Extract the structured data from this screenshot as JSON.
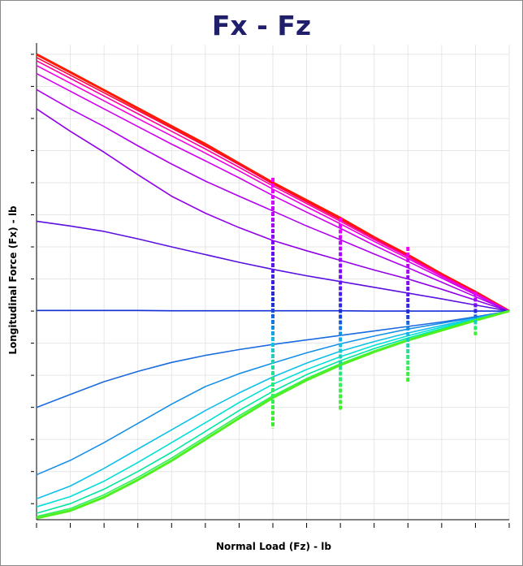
{
  "chart_data": {
    "type": "line",
    "title": "Fx - Fz",
    "xlabel": "Normal Load (Fz) - lb",
    "ylabel": "Longitudinal Force (Fx) - lb",
    "xlim": [
      0,
      14
    ],
    "ylim": [
      -6.5,
      8.3
    ],
    "grid": true,
    "legend": "none",
    "x": [
      0,
      1,
      2,
      3,
      4,
      5,
      6,
      7,
      8,
      9,
      10,
      11,
      12,
      13,
      14
    ],
    "series": [
      {
        "color": "#ff1a00",
        "values": [
          8.0,
          7.44,
          6.88,
          6.32,
          5.76,
          5.2,
          4.6,
          4.0,
          3.45,
          2.9,
          2.3,
          1.75,
          1.15,
          0.6,
          0.0
        ]
      },
      {
        "color": "#ff0040",
        "values": [
          7.9,
          7.35,
          6.8,
          6.25,
          5.7,
          5.14,
          4.56,
          3.96,
          3.4,
          2.85,
          2.27,
          1.72,
          1.13,
          0.58,
          0.0
        ]
      },
      {
        "color": "#ff00a0",
        "values": [
          7.8,
          7.25,
          6.7,
          6.15,
          5.6,
          5.05,
          4.48,
          3.9,
          3.35,
          2.8,
          2.23,
          1.69,
          1.11,
          0.56,
          0.0
        ]
      },
      {
        "color": "#f000e0",
        "values": [
          7.65,
          7.1,
          6.55,
          6.0,
          5.46,
          4.92,
          4.37,
          3.8,
          3.25,
          2.72,
          2.17,
          1.64,
          1.08,
          0.54,
          0.0
        ]
      },
      {
        "color": "#d000f0",
        "values": [
          7.4,
          6.85,
          6.3,
          5.75,
          5.2,
          4.68,
          4.15,
          3.6,
          3.08,
          2.58,
          2.05,
          1.55,
          1.03,
          0.51,
          0.0
        ]
      },
      {
        "color": "#b000f0",
        "values": [
          6.9,
          6.3,
          5.75,
          5.15,
          4.58,
          4.05,
          3.58,
          3.12,
          2.65,
          2.22,
          1.78,
          1.35,
          0.9,
          0.45,
          0.0
        ]
      },
      {
        "color": "#9000e8",
        "values": [
          6.3,
          5.6,
          4.95,
          4.25,
          3.58,
          3.05,
          2.6,
          2.2,
          1.88,
          1.58,
          1.28,
          1.0,
          0.68,
          0.34,
          0.0
        ]
      },
      {
        "color": "#5a10e0",
        "values": [
          2.8,
          2.65,
          2.48,
          2.25,
          2.0,
          1.76,
          1.52,
          1.3,
          1.1,
          0.92,
          0.74,
          0.56,
          0.38,
          0.19,
          0.0
        ]
      },
      {
        "color": "#1530d8",
        "values": [
          0.02,
          0.02,
          0.02,
          0.02,
          0.01,
          0.01,
          0.01,
          0.01,
          0.01,
          0.01,
          0.0,
          0.0,
          0.0,
          0.0,
          0.0
        ]
      },
      {
        "color": "#1a6ae0",
        "values": [
          -3.0,
          -2.6,
          -2.2,
          -1.88,
          -1.6,
          -1.38,
          -1.2,
          -1.04,
          -0.9,
          -0.76,
          -0.62,
          -0.48,
          -0.34,
          -0.18,
          0.0
        ]
      },
      {
        "color": "#1890e8",
        "values": [
          -5.1,
          -4.65,
          -4.1,
          -3.5,
          -2.9,
          -2.35,
          -1.95,
          -1.62,
          -1.3,
          -1.02,
          -0.78,
          -0.56,
          -0.38,
          -0.2,
          0.0
        ]
      },
      {
        "color": "#10c0e8",
        "values": [
          -5.85,
          -5.45,
          -4.9,
          -4.3,
          -3.7,
          -3.1,
          -2.55,
          -2.05,
          -1.62,
          -1.25,
          -0.95,
          -0.68,
          -0.45,
          -0.23,
          0.0
        ]
      },
      {
        "color": "#00e0d8",
        "values": [
          -6.1,
          -5.78,
          -5.3,
          -4.72,
          -4.1,
          -3.48,
          -2.85,
          -2.28,
          -1.82,
          -1.42,
          -1.07,
          -0.77,
          -0.5,
          -0.25,
          0.0
        ]
      },
      {
        "color": "#00e8a0",
        "values": [
          -6.3,
          -6.0,
          -5.55,
          -5.0,
          -4.4,
          -3.75,
          -3.1,
          -2.5,
          -1.98,
          -1.55,
          -1.17,
          -0.84,
          -0.55,
          -0.27,
          0.0
        ]
      },
      {
        "color": "#30f060",
        "values": [
          -6.4,
          -6.15,
          -5.72,
          -5.18,
          -4.58,
          -3.92,
          -3.26,
          -2.64,
          -2.1,
          -1.64,
          -1.24,
          -0.89,
          -0.58,
          -0.28,
          0.0
        ]
      },
      {
        "color": "#50f020",
        "values": [
          -6.45,
          -6.22,
          -5.8,
          -5.26,
          -4.66,
          -4.0,
          -3.34,
          -2.7,
          -2.15,
          -1.68,
          -1.27,
          -0.91,
          -0.6,
          -0.29,
          0.0
        ]
      }
    ],
    "markers": [
      {
        "x": 7,
        "y_top": 4.15,
        "y_bottom": -3.65
      },
      {
        "x": 9,
        "y_top": 2.9,
        "y_bottom": -3.1
      },
      {
        "x": 11,
        "y_top": 2.0,
        "y_bottom": -2.25
      },
      {
        "x": 13,
        "y_top": 0.6,
        "y_bottom": -0.75
      }
    ]
  }
}
